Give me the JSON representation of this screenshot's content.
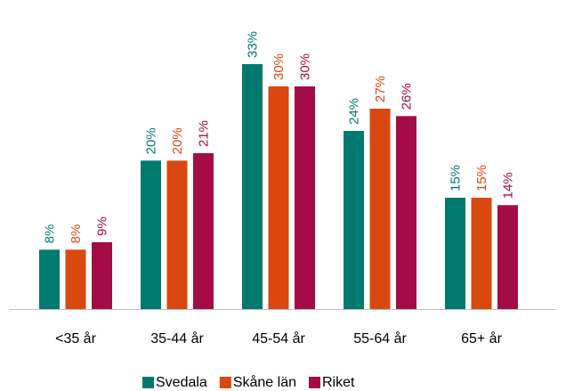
{
  "chart_data": {
    "type": "bar",
    "categories": [
      "<35 år",
      "35-44 år",
      "45-54 år",
      "55-64 år",
      "65+ år"
    ],
    "series": [
      {
        "name": "Svedala",
        "color": "#007a6e",
        "values": [
          8,
          20,
          33,
          24,
          15
        ],
        "value_labels": [
          "8%",
          "20%",
          "33%",
          "24%",
          "15%"
        ]
      },
      {
        "name": "Skåne län",
        "color": "#d9480f",
        "values": [
          8,
          20,
          30,
          27,
          15
        ],
        "value_labels": [
          "8%",
          "20%",
          "30%",
          "27%",
          "15%"
        ]
      },
      {
        "name": "Riket",
        "color": "#a50b47",
        "values": [
          9,
          21,
          30,
          26,
          14
        ],
        "value_labels": [
          "9%",
          "21%",
          "30%",
          "26%",
          "14%"
        ]
      }
    ],
    "ylim": [
      0,
      39
    ],
    "legend": "bottom"
  }
}
